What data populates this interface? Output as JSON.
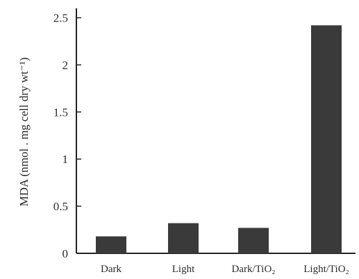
{
  "chart_data": {
    "type": "bar",
    "categories": [
      "Dark",
      "Light",
      "Dark/TiO₂",
      "Light/TiO₂"
    ],
    "values": [
      0.18,
      0.32,
      0.27,
      2.42
    ],
    "ylabel": "MDA (nmol . mg cell dry wt⁻¹)",
    "yticks": [
      "0",
      "0.5",
      "1",
      "1.5",
      "2",
      "2.5"
    ],
    "ylim": [
      0,
      2.6
    ],
    "grid": false,
    "colors": {
      "bar": "#3a3a3a",
      "axis": "#222222"
    }
  }
}
